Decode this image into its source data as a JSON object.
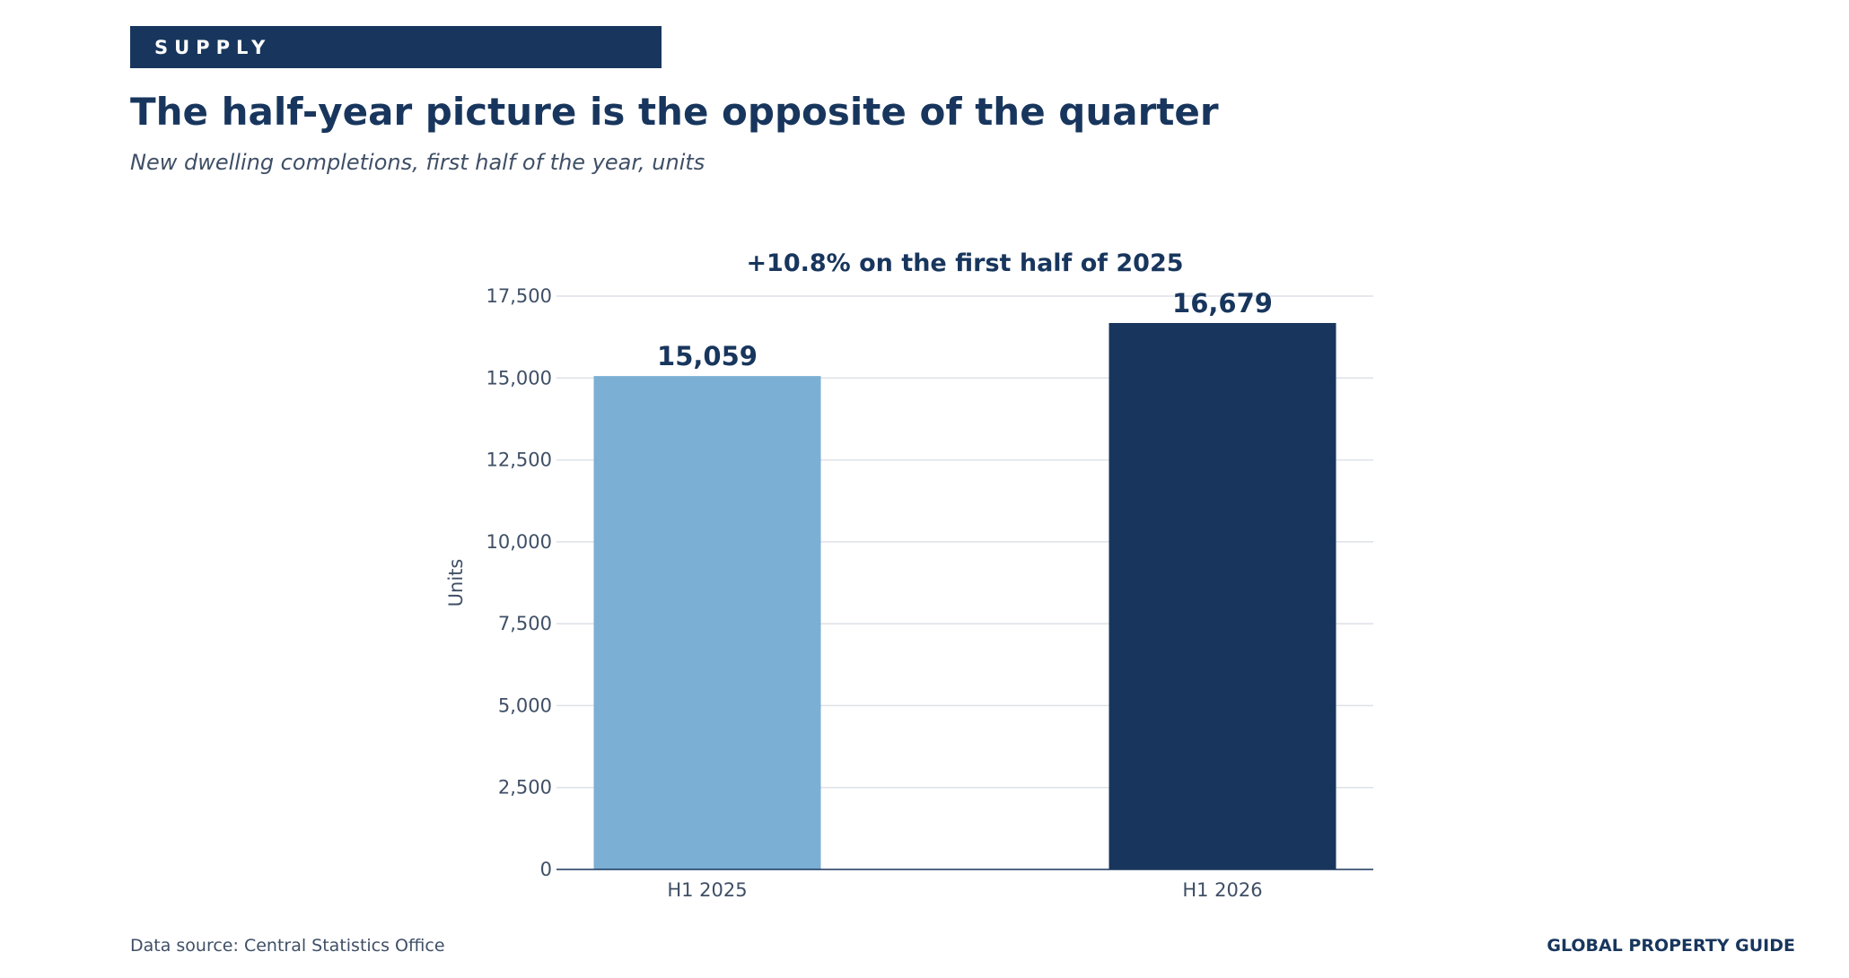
{
  "header": {
    "tag": "SUPPLY",
    "title": "The half-year picture is the opposite of the quarter",
    "subtitle": "New dwelling completions, first half of the year, units"
  },
  "footer": {
    "source": "Data source: Central Statistics Office",
    "brand": "GLOBAL PROPERTY GUIDE"
  },
  "chart_data": {
    "type": "bar",
    "title": "+10.8% on the first half of 2025",
    "xlabel": "",
    "ylabel": "Units",
    "categories": [
      "H1 2025",
      "H1 2026"
    ],
    "values": [
      15059,
      16679
    ],
    "value_labels": [
      "15,059",
      "16,679"
    ],
    "bar_colors": [
      "#7bafd4",
      "#18365d"
    ],
    "ylim": [
      0,
      17500
    ],
    "yticks": [
      0,
      2500,
      5000,
      7500,
      10000,
      12500,
      15000,
      17500
    ],
    "ytick_labels": [
      "0",
      "2,500",
      "5,000",
      "7,500",
      "10,000",
      "12,500",
      "15,000",
      "17,500"
    ],
    "grid": true,
    "legend": false
  },
  "colors": {
    "accent": "#18365d",
    "highlight_bar": "#18365d",
    "base_bar": "#7bafd4",
    "text_muted": "#3f4f66",
    "gridline": "#dde1e7"
  }
}
